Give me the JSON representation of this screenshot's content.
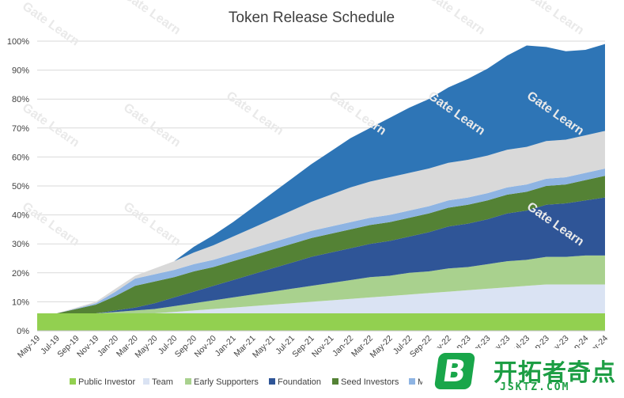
{
  "chart_data": {
    "type": "area",
    "stacked": true,
    "title": "Token Release Schedule",
    "xlabel": "",
    "ylabel": "",
    "ylim": [
      0,
      100
    ],
    "yticks": [
      "0%",
      "10%",
      "20%",
      "30%",
      "40%",
      "50%",
      "60%",
      "70%",
      "80%",
      "90%",
      "100%"
    ],
    "grid": true,
    "legend_position": "bottom",
    "categories": [
      "May-19",
      "Jul-19",
      "Sep-19",
      "Nov-19",
      "Jan-20",
      "Mar-20",
      "May-20",
      "Jul-20",
      "Sep-20",
      "Nov-20",
      "Jan-21",
      "Mar-21",
      "May-21",
      "Jul-21",
      "Sep-21",
      "Nov-21",
      "Jan-22",
      "Mar-22",
      "May-22",
      "Jul-22",
      "Sep-22",
      "Nov-22",
      "Jan-23",
      "Mar-23",
      "May-23",
      "Jul-23",
      "Sep-23",
      "Nov-23",
      "Jan-24",
      "Mar-24"
    ],
    "series": [
      {
        "name": "Public Investor",
        "color": "#92d050",
        "values": [
          6,
          6,
          6,
          6,
          6,
          6,
          6,
          6,
          6,
          6,
          6,
          6,
          6,
          6,
          6,
          6,
          6,
          6,
          6,
          6,
          6,
          6,
          6,
          6,
          6,
          6,
          6,
          6,
          6,
          6
        ]
      },
      {
        "name": "Team",
        "color": "#dae3f3",
        "values": [
          0,
          0,
          0,
          0,
          0,
          0,
          0,
          0.5,
          1,
          1.5,
          2,
          2.5,
          3,
          3.5,
          4,
          4.5,
          5,
          5.5,
          6,
          6.5,
          7,
          7.5,
          8,
          8.5,
          9,
          9.5,
          10,
          10,
          10,
          10
        ]
      },
      {
        "name": "Early Supporters",
        "color": "#a9d18e",
        "values": [
          0,
          0,
          0,
          0,
          0.5,
          1,
          1.5,
          2,
          2.5,
          3,
          3.5,
          4,
          4.5,
          5,
          5.5,
          6,
          6.5,
          7,
          7,
          7.5,
          7.5,
          8,
          8,
          8.5,
          9,
          9,
          9.5,
          9.5,
          10,
          10
        ]
      },
      {
        "name": "Foundation",
        "color": "#2f5597",
        "values": [
          0,
          0,
          0,
          0,
          0.5,
          1,
          2,
          3,
          4,
          5,
          6,
          7,
          8,
          9,
          10,
          10.5,
          11,
          11.5,
          12,
          12.5,
          13.5,
          14.5,
          15,
          15.5,
          16.5,
          17,
          18,
          18.5,
          19,
          20
        ]
      },
      {
        "name": "Seed Investors",
        "color": "#548235",
        "values": [
          0,
          0,
          1.5,
          3,
          5,
          7.5,
          7.5,
          7,
          7,
          6.5,
          6.5,
          6.5,
          6.5,
          6.5,
          6.5,
          6.5,
          6.5,
          6.5,
          6.5,
          6.5,
          6.5,
          6.5,
          6.5,
          6.5,
          6.5,
          6.5,
          6.5,
          6.5,
          7,
          7.5
        ]
      },
      {
        "name": "Marketing",
        "color": "#8eb4e3",
        "values": [
          0,
          0,
          0.2,
          0.5,
          1.5,
          2.5,
          2.5,
          2.5,
          2.5,
          2.5,
          2.5,
          2.5,
          2.5,
          2.5,
          2.5,
          2.5,
          2.5,
          2.5,
          2.5,
          2.5,
          2.5,
          2.5,
          2.5,
          2.5,
          2.5,
          2.5,
          2.5,
          2.5,
          2.5,
          2.5
        ]
      },
      {
        "name": "",
        "color": "#d9d9d9",
        "values": [
          0,
          0,
          0.3,
          0.5,
          1,
          1,
          2,
          3,
          4,
          5,
          6,
          7,
          8,
          9,
          10,
          11,
          12,
          12.5,
          13,
          13,
          13,
          13,
          13,
          13,
          13,
          13,
          13,
          13,
          13,
          13
        ]
      },
      {
        "name": "",
        "color": "#2e75b6",
        "values": [
          0,
          0,
          0,
          0,
          0,
          0,
          0,
          0,
          2,
          3.5,
          5,
          7,
          9,
          11,
          13,
          15,
          17,
          18.5,
          20.5,
          22.5,
          24,
          26,
          28,
          30,
          32.5,
          35,
          32.5,
          30.5,
          29.5,
          30
        ]
      }
    ]
  },
  "watermark": {
    "text": "Gate Learn"
  },
  "logo": {
    "letter": "B",
    "chinese": "开拓者奇点",
    "domain": "JSKTZ.COM"
  }
}
